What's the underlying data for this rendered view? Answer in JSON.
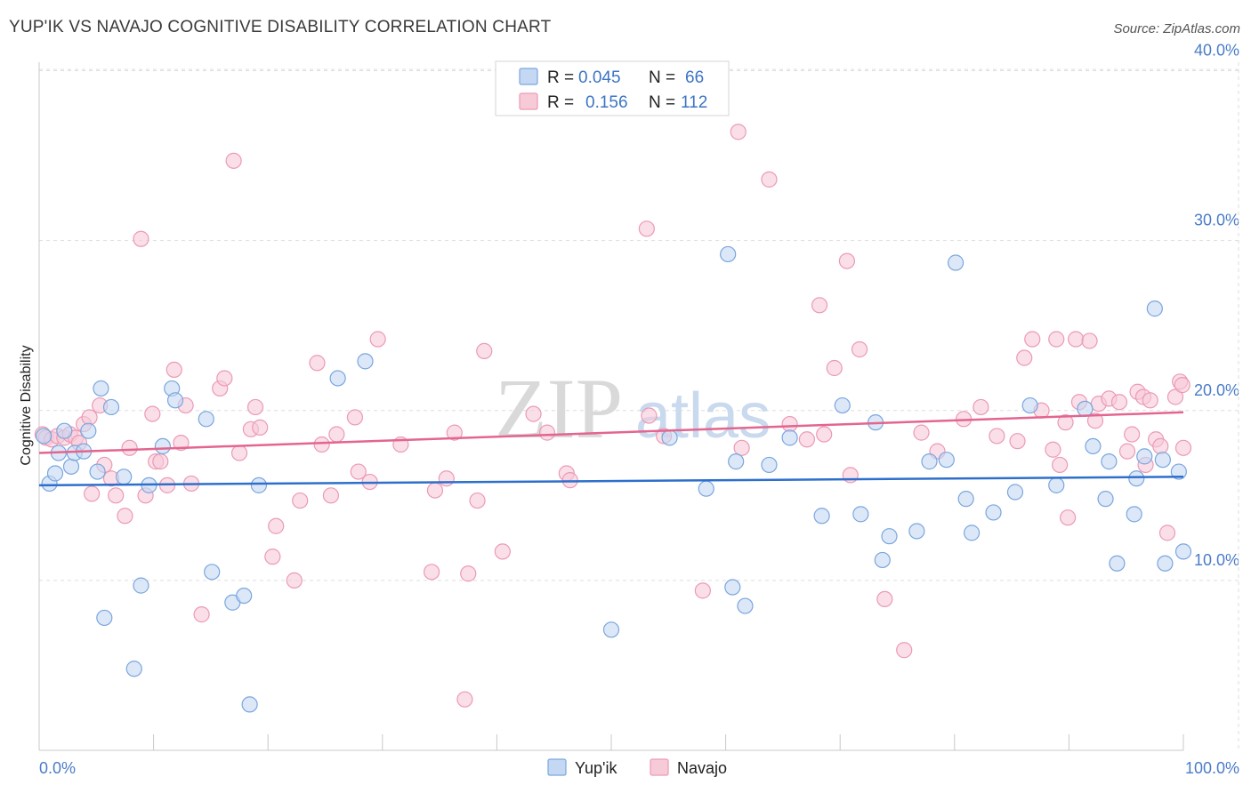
{
  "title": "YUP'IK VS NAVAJO COGNITIVE DISABILITY CORRELATION CHART",
  "source": "Source: ZipAtlas.com",
  "watermark": {
    "zip": "ZIP",
    "atlas": "atlas"
  },
  "colors": {
    "yupik_fill": "#c5d8f3",
    "yupik_stroke": "#7aa6de",
    "yupik_line": "#2e6fcc",
    "navajo_fill": "#f7cad8",
    "navajo_stroke": "#ec9ab4",
    "navajo_line": "#e4658f",
    "tick_label": "#4a7cc9"
  },
  "legend": {
    "rows": [
      {
        "r_label": "R =",
        "r_value": "0.045",
        "n_label": "N =",
        "n_value": "66"
      },
      {
        "r_label": "R =",
        "r_value": "0.156",
        "n_label": "N =",
        "n_value": "112"
      }
    ]
  },
  "chart_data": {
    "type": "scatter",
    "ylabel": "Cognitive Disability",
    "xlabel": "",
    "xlim": [
      0,
      100
    ],
    "ylim": [
      0,
      40.5
    ],
    "x_tick_labels": [
      "0.0%",
      "100.0%"
    ],
    "y_ticks": [
      10,
      20,
      30,
      40
    ],
    "y_tick_labels": [
      "10.0%",
      "20.0%",
      "30.0%",
      "40.0%"
    ],
    "grid": true,
    "legend_position": "bottom-center",
    "series": [
      {
        "name": "Yup'ik",
        "r": 0.045,
        "n": 66,
        "trend": [
          [
            0,
            15.6
          ],
          [
            100,
            16.1
          ]
        ],
        "points": [
          [
            0.4,
            18.5
          ],
          [
            0.9,
            15.7
          ],
          [
            1.4,
            16.3
          ],
          [
            1.7,
            17.5
          ],
          [
            2.2,
            18.8
          ],
          [
            2.8,
            16.7
          ],
          [
            3.1,
            17.5
          ],
          [
            3.9,
            17.6
          ],
          [
            4.3,
            18.8
          ],
          [
            5.1,
            16.4
          ],
          [
            5.4,
            21.3
          ],
          [
            5.7,
            7.8
          ],
          [
            6.3,
            20.2
          ],
          [
            7.4,
            16.1
          ],
          [
            8.3,
            4.8
          ],
          [
            8.9,
            9.7
          ],
          [
            9.6,
            15.6
          ],
          [
            10.8,
            17.9
          ],
          [
            11.6,
            21.3
          ],
          [
            11.9,
            20.6
          ],
          [
            14.6,
            19.5
          ],
          [
            15.1,
            10.5
          ],
          [
            16.9,
            8.7
          ],
          [
            17.9,
            9.1
          ],
          [
            18.4,
            2.7
          ],
          [
            19.2,
            15.6
          ],
          [
            26.1,
            21.9
          ],
          [
            28.5,
            22.9
          ],
          [
            50.0,
            7.1
          ],
          [
            55.1,
            18.4
          ],
          [
            58.3,
            15.4
          ],
          [
            60.2,
            29.2
          ],
          [
            60.6,
            9.6
          ],
          [
            60.9,
            17.0
          ],
          [
            61.7,
            8.5
          ],
          [
            63.8,
            16.8
          ],
          [
            65.6,
            18.4
          ],
          [
            68.4,
            13.8
          ],
          [
            70.2,
            20.3
          ],
          [
            71.8,
            13.9
          ],
          [
            73.1,
            19.3
          ],
          [
            73.7,
            11.2
          ],
          [
            74.3,
            12.6
          ],
          [
            76.7,
            12.9
          ],
          [
            77.8,
            17.0
          ],
          [
            79.3,
            17.1
          ],
          [
            80.1,
            28.7
          ],
          [
            81.0,
            14.8
          ],
          [
            81.5,
            12.8
          ],
          [
            83.4,
            14.0
          ],
          [
            85.3,
            15.2
          ],
          [
            86.6,
            20.3
          ],
          [
            88.9,
            15.6
          ],
          [
            91.4,
            20.1
          ],
          [
            92.1,
            17.9
          ],
          [
            93.2,
            14.8
          ],
          [
            93.5,
            17.0
          ],
          [
            94.2,
            11.0
          ],
          [
            95.7,
            13.9
          ],
          [
            95.9,
            16.0
          ],
          [
            96.6,
            17.3
          ],
          [
            97.5,
            26.0
          ],
          [
            98.2,
            17.1
          ],
          [
            98.4,
            11.0
          ],
          [
            99.6,
            16.4
          ],
          [
            100.0,
            11.7
          ]
        ]
      },
      {
        "name": "Navajo",
        "r": 0.156,
        "n": 112,
        "trend": [
          [
            0,
            17.5
          ],
          [
            100,
            19.9
          ]
        ],
        "points": [
          [
            0.3,
            18.6
          ],
          [
            0.6,
            18.4
          ],
          [
            1.1,
            18.3
          ],
          [
            1.6,
            18.5
          ],
          [
            2.2,
            18.4
          ],
          [
            2.7,
            18.6
          ],
          [
            3.2,
            18.4
          ],
          [
            3.5,
            18.1
          ],
          [
            3.9,
            19.2
          ],
          [
            4.4,
            19.6
          ],
          [
            4.6,
            15.1
          ],
          [
            5.3,
            20.3
          ],
          [
            5.7,
            16.8
          ],
          [
            6.3,
            16.0
          ],
          [
            6.7,
            15.0
          ],
          [
            7.5,
            13.8
          ],
          [
            7.9,
            17.8
          ],
          [
            8.9,
            30.1
          ],
          [
            9.3,
            15.0
          ],
          [
            9.9,
            19.8
          ],
          [
            10.2,
            17.0
          ],
          [
            10.6,
            17.0
          ],
          [
            11.2,
            15.6
          ],
          [
            11.8,
            22.4
          ],
          [
            12.4,
            18.1
          ],
          [
            12.8,
            20.3
          ],
          [
            13.3,
            15.7
          ],
          [
            14.2,
            8.0
          ],
          [
            15.8,
            21.3
          ],
          [
            16.2,
            21.9
          ],
          [
            17.0,
            34.7
          ],
          [
            17.5,
            17.5
          ],
          [
            18.5,
            18.9
          ],
          [
            18.9,
            20.2
          ],
          [
            19.3,
            19.0
          ],
          [
            20.4,
            11.4
          ],
          [
            20.7,
            13.2
          ],
          [
            22.3,
            10.0
          ],
          [
            22.8,
            14.7
          ],
          [
            24.3,
            22.8
          ],
          [
            24.7,
            18.0
          ],
          [
            25.5,
            15.0
          ],
          [
            26.0,
            18.6
          ],
          [
            27.6,
            19.6
          ],
          [
            27.9,
            16.4
          ],
          [
            28.9,
            15.8
          ],
          [
            29.6,
            24.2
          ],
          [
            31.6,
            18.0
          ],
          [
            34.3,
            10.5
          ],
          [
            34.6,
            15.3
          ],
          [
            35.6,
            16.0
          ],
          [
            36.3,
            18.7
          ],
          [
            37.2,
            3.0
          ],
          [
            37.5,
            10.4
          ],
          [
            38.3,
            14.7
          ],
          [
            38.9,
            23.5
          ],
          [
            40.5,
            11.7
          ],
          [
            43.2,
            19.8
          ],
          [
            44.4,
            18.7
          ],
          [
            46.1,
            16.3
          ],
          [
            46.4,
            15.9
          ],
          [
            53.1,
            30.7
          ],
          [
            53.3,
            19.7
          ],
          [
            54.6,
            18.5
          ],
          [
            58.0,
            9.4
          ],
          [
            61.1,
            36.4
          ],
          [
            61.4,
            17.8
          ],
          [
            63.8,
            33.6
          ],
          [
            65.6,
            19.2
          ],
          [
            67.1,
            18.3
          ],
          [
            68.2,
            26.2
          ],
          [
            68.6,
            18.6
          ],
          [
            69.5,
            22.5
          ],
          [
            70.6,
            28.8
          ],
          [
            70.9,
            16.2
          ],
          [
            71.7,
            23.6
          ],
          [
            73.9,
            8.9
          ],
          [
            75.6,
            5.9
          ],
          [
            77.1,
            18.7
          ],
          [
            78.5,
            17.6
          ],
          [
            80.8,
            19.5
          ],
          [
            82.3,
            20.2
          ],
          [
            83.7,
            18.5
          ],
          [
            85.5,
            18.2
          ],
          [
            86.1,
            23.1
          ],
          [
            86.8,
            24.2
          ],
          [
            87.6,
            20.0
          ],
          [
            88.6,
            17.7
          ],
          [
            88.9,
            24.2
          ],
          [
            89.2,
            16.8
          ],
          [
            89.7,
            19.3
          ],
          [
            89.9,
            13.7
          ],
          [
            90.6,
            24.2
          ],
          [
            90.9,
            20.5
          ],
          [
            91.8,
            24.1
          ],
          [
            92.3,
            19.4
          ],
          [
            92.6,
            20.4
          ],
          [
            93.5,
            20.7
          ],
          [
            94.4,
            20.5
          ],
          [
            95.1,
            17.6
          ],
          [
            95.5,
            18.6
          ],
          [
            96.0,
            21.1
          ],
          [
            96.5,
            20.8
          ],
          [
            96.7,
            16.8
          ],
          [
            97.1,
            20.6
          ],
          [
            97.6,
            18.3
          ],
          [
            98.0,
            17.9
          ],
          [
            98.6,
            12.8
          ],
          [
            99.3,
            20.8
          ],
          [
            99.7,
            21.7
          ],
          [
            99.9,
            21.5
          ],
          [
            100.0,
            17.8
          ]
        ]
      }
    ]
  }
}
